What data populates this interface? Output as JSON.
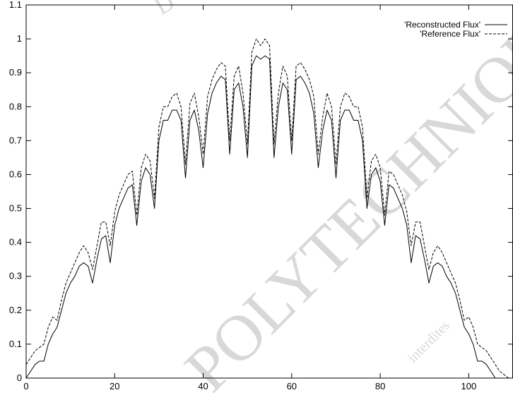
{
  "watermark": {
    "main": "POLYTECHNIQUE",
    "top": "D",
    "small": "interdites"
  },
  "chart_data": {
    "type": "line",
    "title": "",
    "xlabel": "",
    "ylabel": "",
    "xlim": [
      0,
      110
    ],
    "ylim": [
      0,
      1.1
    ],
    "xticks": [
      0,
      20,
      40,
      60,
      80,
      100
    ],
    "yticks": [
      0,
      0.1,
      0.2,
      0.3,
      0.4,
      0.5,
      0.6,
      0.7,
      0.8,
      0.9,
      1,
      1.1
    ],
    "grid": false,
    "legend_position": "top-right",
    "series": [
      {
        "name": "'Reconstructed Flux'",
        "style": "solid",
        "color": "#000000",
        "x": [
          0,
          1,
          2,
          3,
          4,
          5,
          6,
          7,
          8,
          9,
          10,
          11,
          12,
          13,
          14,
          15,
          16,
          17,
          18,
          19,
          20,
          21,
          22,
          23,
          24,
          25,
          26,
          27,
          28,
          29,
          30,
          31,
          32,
          33,
          34,
          35,
          36,
          37,
          38,
          39,
          40,
          41,
          42,
          43,
          44,
          45,
          46,
          47,
          48,
          49,
          50,
          51,
          52,
          53,
          54,
          55,
          56,
          57,
          58,
          59,
          60,
          61,
          62,
          63,
          64,
          65,
          66,
          67,
          68,
          69,
          70,
          71,
          72,
          73,
          74,
          75,
          76,
          77,
          78,
          79,
          80,
          81,
          82,
          83,
          84,
          85,
          86,
          87,
          88,
          89,
          90,
          91,
          92,
          93,
          94,
          95,
          96,
          97,
          98,
          99,
          100,
          101,
          102,
          103,
          104,
          105,
          106,
          107,
          108,
          109,
          110
        ],
        "y": [
          0.0,
          0.02,
          0.04,
          0.05,
          0.05,
          0.1,
          0.13,
          0.15,
          0.2,
          0.25,
          0.28,
          0.3,
          0.33,
          0.34,
          0.33,
          0.28,
          0.35,
          0.41,
          0.42,
          0.34,
          0.45,
          0.5,
          0.53,
          0.56,
          0.57,
          0.45,
          0.58,
          0.62,
          0.6,
          0.5,
          0.7,
          0.76,
          0.76,
          0.79,
          0.79,
          0.76,
          0.59,
          0.76,
          0.79,
          0.73,
          0.62,
          0.78,
          0.84,
          0.87,
          0.89,
          0.88,
          0.66,
          0.85,
          0.87,
          0.8,
          0.65,
          0.92,
          0.95,
          0.94,
          0.95,
          0.94,
          0.65,
          0.8,
          0.87,
          0.85,
          0.66,
          0.88,
          0.89,
          0.87,
          0.84,
          0.78,
          0.62,
          0.73,
          0.79,
          0.76,
          0.59,
          0.76,
          0.79,
          0.79,
          0.76,
          0.76,
          0.7,
          0.5,
          0.6,
          0.62,
          0.58,
          0.45,
          0.57,
          0.56,
          0.53,
          0.5,
          0.45,
          0.34,
          0.42,
          0.41,
          0.35,
          0.28,
          0.33,
          0.34,
          0.33,
          0.3,
          0.28,
          0.25,
          0.2,
          0.15,
          0.13,
          0.1,
          0.05,
          0.05,
          0.04,
          0.02,
          0.0,
          0.0,
          0.0,
          0.0,
          0.0
        ]
      },
      {
        "name": "'Reference Flux'",
        "style": "dashed",
        "color": "#000000",
        "x": [
          0,
          1,
          2,
          3,
          4,
          5,
          6,
          7,
          8,
          9,
          10,
          11,
          12,
          13,
          14,
          15,
          16,
          17,
          18,
          19,
          20,
          21,
          22,
          23,
          24,
          25,
          26,
          27,
          28,
          29,
          30,
          31,
          32,
          33,
          34,
          35,
          36,
          37,
          38,
          39,
          40,
          41,
          42,
          43,
          44,
          45,
          46,
          47,
          48,
          49,
          50,
          51,
          52,
          53,
          54,
          55,
          56,
          57,
          58,
          59,
          60,
          61,
          62,
          63,
          64,
          65,
          66,
          67,
          68,
          69,
          70,
          71,
          72,
          73,
          74,
          75,
          76,
          77,
          78,
          79,
          80,
          81,
          82,
          83,
          84,
          85,
          86,
          87,
          88,
          89,
          90,
          91,
          92,
          93,
          94,
          95,
          96,
          97,
          98,
          99,
          100,
          101,
          102,
          103,
          104,
          105,
          106,
          107,
          108,
          109,
          110
        ],
        "y": [
          0.04,
          0.06,
          0.08,
          0.09,
          0.1,
          0.15,
          0.18,
          0.17,
          0.23,
          0.28,
          0.31,
          0.34,
          0.37,
          0.39,
          0.37,
          0.32,
          0.39,
          0.46,
          0.46,
          0.39,
          0.49,
          0.54,
          0.57,
          0.6,
          0.61,
          0.48,
          0.62,
          0.66,
          0.64,
          0.53,
          0.74,
          0.8,
          0.8,
          0.83,
          0.84,
          0.8,
          0.63,
          0.81,
          0.84,
          0.77,
          0.66,
          0.83,
          0.88,
          0.91,
          0.93,
          0.92,
          0.7,
          0.89,
          0.92,
          0.84,
          0.69,
          0.96,
          1.0,
          0.98,
          1.0,
          0.98,
          0.69,
          0.84,
          0.92,
          0.89,
          0.7,
          0.92,
          0.93,
          0.91,
          0.88,
          0.83,
          0.66,
          0.77,
          0.84,
          0.8,
          0.63,
          0.8,
          0.84,
          0.83,
          0.8,
          0.8,
          0.74,
          0.53,
          0.64,
          0.66,
          0.62,
          0.48,
          0.61,
          0.6,
          0.57,
          0.54,
          0.49,
          0.39,
          0.46,
          0.46,
          0.39,
          0.32,
          0.37,
          0.39,
          0.37,
          0.34,
          0.31,
          0.28,
          0.23,
          0.17,
          0.18,
          0.15,
          0.1,
          0.09,
          0.08,
          0.06,
          0.04,
          0.02,
          0.01,
          0.0,
          0.0
        ]
      }
    ]
  }
}
